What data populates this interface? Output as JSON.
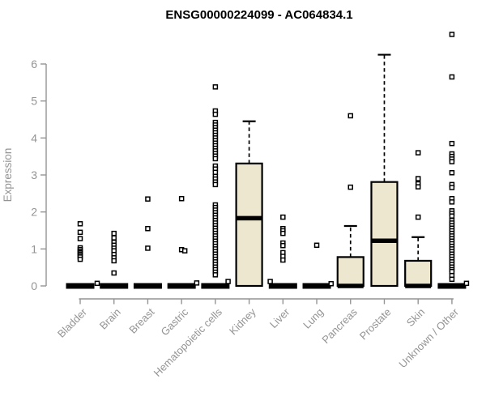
{
  "title": "ENSG00000224099 - AC064834.1",
  "chart_data": {
    "type": "boxplot",
    "title": "ENSG00000224099 - AC064834.1",
    "ylabel": "Expression",
    "xlabel": "",
    "ylim": [
      0,
      6.9
    ],
    "yticks": [
      0,
      1,
      2,
      3,
      4,
      5,
      6
    ],
    "grid": false,
    "legend": "none",
    "colors": {
      "box_fill": "#ECE7CE",
      "box_stroke": "#000000",
      "axis": "#949494",
      "tick_label": "#949494",
      "title_color": "#000000",
      "marker_stroke": "#000000",
      "marker_fill": "#ffffff"
    },
    "categories": [
      {
        "label": "Bladder",
        "collapsed": true,
        "q1": 0,
        "median": 0,
        "q3": 0,
        "whisker_low": 0,
        "whisker_high": 0,
        "outliers": [
          1.68,
          1.45,
          1.28,
          1.03,
          0.98,
          0.93,
          0.9,
          0.86,
          0.82,
          0.78,
          0.72
        ],
        "jitter": [
          {
            "v": 0.07,
            "dx": 21
          }
        ]
      },
      {
        "label": "Brain",
        "collapsed": true,
        "q1": 0,
        "median": 0,
        "q3": 0,
        "whisker_low": 0,
        "whisker_high": 0,
        "outliers": [
          1.42,
          1.3,
          1.18,
          1.1,
          1.02,
          0.95,
          0.85,
          0.76,
          0.68,
          0.35
        ],
        "jitter": []
      },
      {
        "label": "Breast",
        "collapsed": true,
        "q1": 0,
        "median": 0,
        "q3": 0,
        "whisker_low": 0,
        "whisker_high": 0,
        "outliers": [
          2.35,
          1.55,
          1.02
        ],
        "jitter": []
      },
      {
        "label": "Gastric",
        "collapsed": true,
        "q1": 0,
        "median": 0,
        "q3": 0,
        "whisker_low": 0,
        "whisker_high": 0,
        "outliers": [
          2.36,
          0.98
        ],
        "jitter": [
          {
            "v": 0.95,
            "dx": 4
          }
        ]
      },
      {
        "label": "Hematopoietic cells",
        "collapsed": true,
        "q1": 0,
        "median": 0,
        "q3": 0,
        "whisker_low": 0,
        "whisker_high": 0,
        "outliers": [
          5.38,
          4.73,
          4.64,
          4.42,
          4.35,
          4.28,
          4.21,
          4.14,
          4.07,
          4.0,
          3.93,
          3.86,
          3.79,
          3.72,
          3.65,
          3.58,
          3.51,
          3.44,
          3.24,
          3.16,
          3.07,
          2.96,
          2.89,
          2.81,
          2.74,
          2.19,
          2.12,
          2.05,
          1.98,
          1.91,
          1.84,
          1.77,
          1.7,
          1.63,
          1.56,
          1.49,
          1.42,
          1.35,
          1.28,
          1.21,
          1.14,
          1.07,
          1.0,
          0.93,
          0.86,
          0.79,
          0.72,
          0.65,
          0.58,
          0.51,
          0.44,
          0.37,
          0.3
        ],
        "jitter": [
          {
            "v": 0.08,
            "dx": -23
          }
        ]
      },
      {
        "label": "Kidney",
        "collapsed": false,
        "q1": 0,
        "median": 1.83,
        "q3": 3.31,
        "whisker_low": 0,
        "whisker_high": 4.45,
        "outliers": [],
        "jitter": [
          {
            "v": 0.12,
            "dx": -26
          },
          {
            "v": 0.12,
            "dx": 26
          }
        ]
      },
      {
        "label": "Liver",
        "collapsed": true,
        "q1": 0,
        "median": 0,
        "q3": 0,
        "whisker_low": 0,
        "whisker_high": 0,
        "outliers": [
          1.86,
          1.55,
          1.49,
          1.42,
          1.16,
          1.09,
          0.9,
          0.8,
          0.7
        ],
        "jitter": []
      },
      {
        "label": "Lung",
        "collapsed": true,
        "q1": 0,
        "median": 0,
        "q3": 0,
        "whisker_low": 0,
        "whisker_high": 0,
        "outliers": [
          1.1
        ],
        "jitter": []
      },
      {
        "label": "Pancreas",
        "collapsed": false,
        "q1": 0,
        "median": 0,
        "q3": 0.78,
        "whisker_low": 0,
        "whisker_high": 1.62,
        "outliers": [
          4.6,
          2.67
        ],
        "jitter": [
          {
            "v": 0.06,
            "dx": -24
          }
        ]
      },
      {
        "label": "Prostate",
        "collapsed": false,
        "q1": 0,
        "median": 1.22,
        "q3": 2.81,
        "whisker_low": 0,
        "whisker_high": 6.25,
        "outliers": [],
        "jitter": []
      },
      {
        "label": "Skin",
        "collapsed": false,
        "q1": 0,
        "median": 0,
        "q3": 0.68,
        "whisker_low": 0,
        "whisker_high": 1.32,
        "outliers": [
          3.6,
          2.9,
          2.76,
          2.68,
          1.86
        ],
        "jitter": []
      },
      {
        "label": "Unknown / Other",
        "collapsed": true,
        "q1": 0,
        "median": 0,
        "q3": 0,
        "whisker_low": 0,
        "whisker_high": 0,
        "outliers": [
          6.8,
          5.65,
          3.85,
          3.57,
          3.5,
          3.43,
          3.36,
          3.06,
          2.74,
          2.66,
          2.36,
          2.27,
          2.03,
          1.96,
          1.89,
          1.77,
          1.7,
          1.63,
          1.56,
          1.49,
          1.42,
          1.35,
          1.28,
          1.21,
          1.14,
          1.07,
          1.0,
          0.93,
          0.86,
          0.79,
          0.72,
          0.65,
          0.58,
          0.51,
          0.44,
          0.39,
          0.28,
          0.18
        ],
        "jitter": [
          {
            "v": 0.07,
            "dx": 18
          }
        ]
      }
    ]
  }
}
